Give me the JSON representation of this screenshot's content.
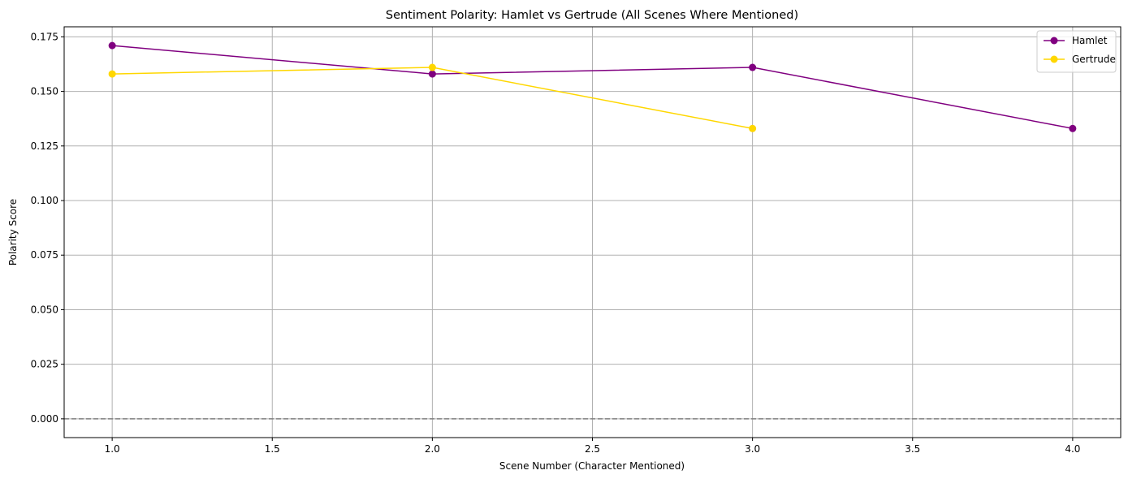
{
  "chart_data": {
    "type": "line",
    "title": "Sentiment Polarity: Hamlet vs Gertrude (All Scenes Where Mentioned)",
    "xlabel": "Scene Number (Character Mentioned)",
    "ylabel": "Polarity Score",
    "xlim": [
      0.85,
      4.15
    ],
    "ylim": [
      -0.0086,
      0.1796
    ],
    "x_ticks": [
      1.0,
      1.5,
      2.0,
      2.5,
      3.0,
      3.5,
      4.0
    ],
    "x_tick_labels": [
      "1.0",
      "1.5",
      "2.0",
      "2.5",
      "3.0",
      "3.5",
      "4.0"
    ],
    "y_ticks": [
      0.0,
      0.025,
      0.05,
      0.075,
      0.1,
      0.125,
      0.15,
      0.175
    ],
    "y_tick_labels": [
      "0.000",
      "0.025",
      "0.050",
      "0.075",
      "0.100",
      "0.125",
      "0.150",
      "0.175"
    ],
    "grid": true,
    "reference_line": {
      "y": 0.0,
      "style": "dashed",
      "color": "#808080"
    },
    "legend_position": "top-right",
    "series": [
      {
        "name": "Hamlet",
        "color": "#800080",
        "marker": "circle",
        "x": [
          1,
          2,
          3,
          4
        ],
        "values": [
          0.171,
          0.158,
          0.161,
          0.133
        ]
      },
      {
        "name": "Gertrude",
        "color": "#ffd700",
        "marker": "circle",
        "x": [
          1,
          2,
          3
        ],
        "values": [
          0.158,
          0.161,
          0.133
        ]
      }
    ]
  }
}
